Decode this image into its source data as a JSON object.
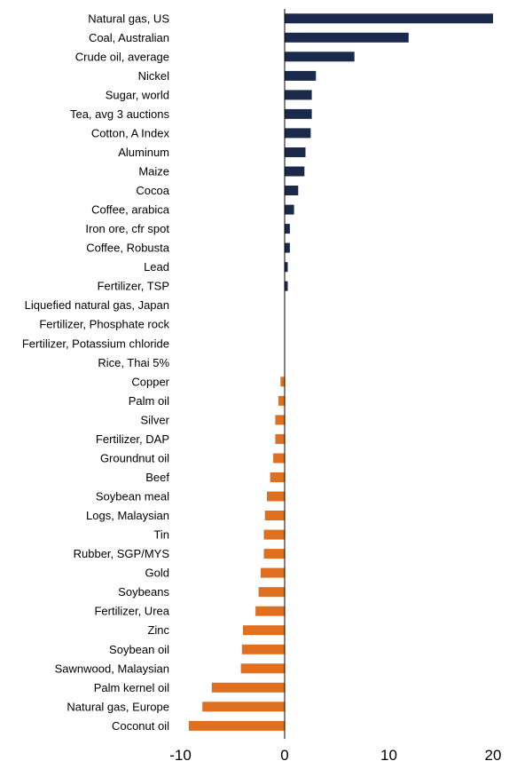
{
  "chart_data": {
    "type": "bar",
    "orientation": "horizontal",
    "title": "",
    "xlabel": "",
    "ylabel": "",
    "xlim": [
      -10,
      20
    ],
    "xticks": [
      -10,
      0,
      10,
      20
    ],
    "grid": false,
    "legend": "none",
    "colors": {
      "positive": "#1b2a4a",
      "negative": "#e07020",
      "axis": "#000000"
    },
    "categories": [
      "Natural gas, US",
      "Coal, Australian",
      "Crude oil, average",
      "Nickel",
      "Sugar, world",
      "Tea, avg 3 auctions",
      "Cotton, A Index",
      "Aluminum",
      "Maize",
      "Cocoa",
      "Coffee, arabica",
      "Iron ore, cfr spot",
      "Coffee, Robusta",
      "Lead",
      "Fertilizer, TSP",
      "Liquefied natural gas, Japan",
      "Fertilizer, Phosphate rock",
      "Fertilizer, Potassium chloride",
      "Rice, Thai 5%",
      "Copper",
      "Palm oil",
      "Silver",
      "Fertilizer, DAP",
      "Groundnut oil",
      "Beef",
      "Soybean meal",
      "Logs, Malaysian",
      "Tin",
      "Rubber, SGP/MYS",
      "Gold",
      "Soybeans",
      "Fertilizer, Urea ",
      "Zinc",
      "Soybean oil",
      "Sawnwood, Malaysian",
      "Palm kernel oil",
      "Natural gas, Europe",
      "Coconut oil"
    ],
    "values": [
      20.0,
      11.9,
      6.7,
      3.0,
      2.6,
      2.6,
      2.5,
      2.0,
      1.9,
      1.3,
      0.9,
      0.5,
      0.5,
      0.3,
      0.3,
      0.0,
      0.0,
      0.0,
      0.0,
      -0.4,
      -0.6,
      -0.9,
      -0.9,
      -1.1,
      -1.4,
      -1.7,
      -1.9,
      -2.0,
      -2.0,
      -2.3,
      -2.5,
      -2.8,
      -4.0,
      -4.1,
      -4.2,
      -7.0,
      -7.9,
      -9.2
    ]
  }
}
